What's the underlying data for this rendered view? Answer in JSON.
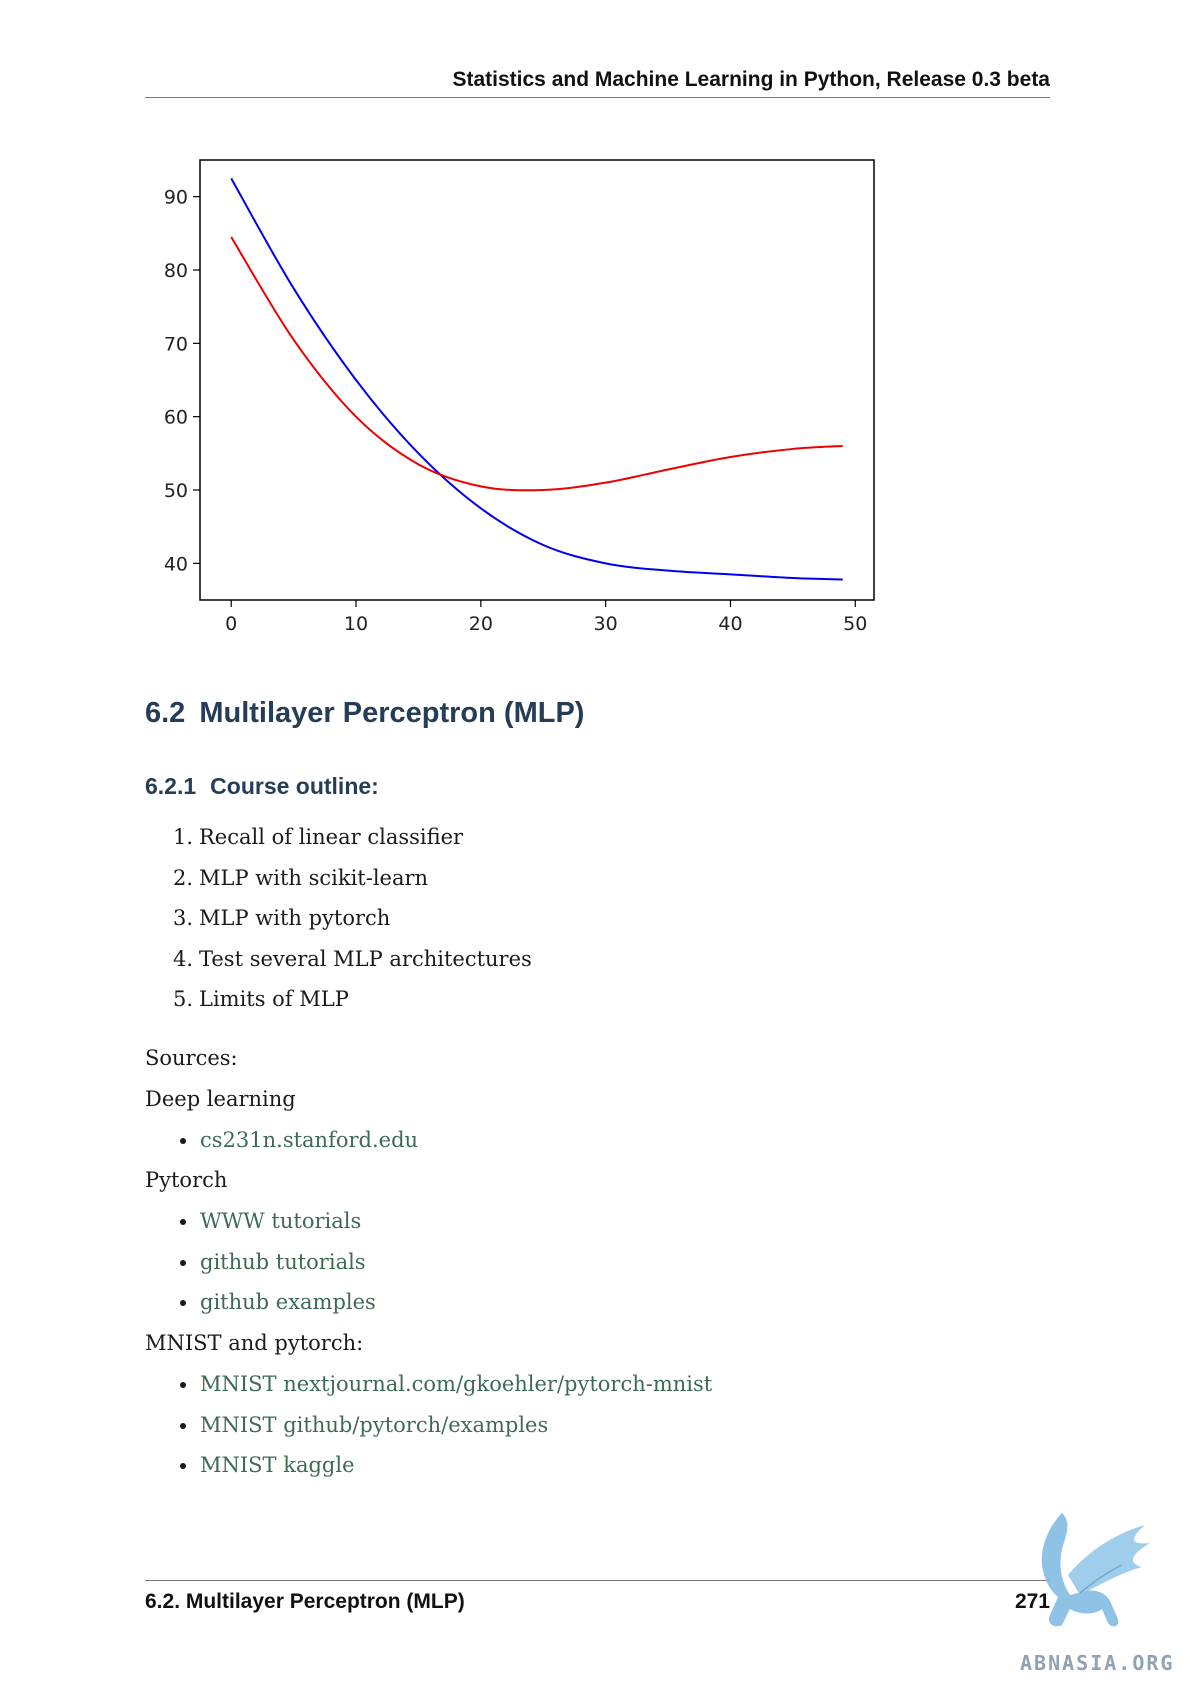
{
  "header": {
    "title": "Statistics and Machine Learning in Python, Release 0.3 beta"
  },
  "chart_data": {
    "type": "line",
    "xlim": [
      -2.5,
      51.5
    ],
    "ylim": [
      35,
      95
    ],
    "xticks": [
      0,
      10,
      20,
      30,
      40,
      50
    ],
    "yticks": [
      40,
      50,
      60,
      70,
      80,
      90
    ],
    "grid": false,
    "series": [
      {
        "color": "#0000ee",
        "x": [
          0,
          5,
          10,
          15,
          20,
          25,
          30,
          35,
          40,
          45,
          49
        ],
        "y": [
          92.5,
          77.5,
          65,
          55,
          47.5,
          42.5,
          40,
          39,
          38.5,
          38,
          37.8
        ]
      },
      {
        "color": "#ee0000",
        "x": [
          0,
          5,
          10,
          15,
          20,
          25,
          30,
          35,
          40,
          45,
          49
        ],
        "y": [
          84.5,
          70.5,
          60,
          53.5,
          50.5,
          50,
          51,
          52.8,
          54.5,
          55.6,
          56
        ]
      }
    ]
  },
  "section": {
    "number": "6.2",
    "title": "Multilayer Perceptron (MLP)"
  },
  "subsection": {
    "number": "6.2.1",
    "title": "Course outline:"
  },
  "outline": [
    {
      "n": "1.",
      "text": "Recall of linear classifier"
    },
    {
      "n": "2.",
      "text": "MLP with scikit-learn"
    },
    {
      "n": "3.",
      "text": "MLP with pytorch"
    },
    {
      "n": "4.",
      "text": "Test several MLP architectures"
    },
    {
      "n": "5.",
      "text": "Limits of MLP"
    }
  ],
  "sources_label": "Sources:",
  "deep_learning": {
    "label": "Deep learning",
    "links": [
      "cs231n.stanford.edu"
    ]
  },
  "pytorch": {
    "label": "Pytorch",
    "links": [
      "WWW tutorials",
      "github tutorials",
      "github examples"
    ]
  },
  "mnist": {
    "label": "MNIST and pytorch:",
    "links": [
      "MNIST nextjournal.com/gkoehler/pytorch-mnist",
      "MNIST github/pytorch/examples",
      "MNIST kaggle"
    ]
  },
  "footer": {
    "left": "6.2.  Multilayer Perceptron (MLP)",
    "page": "271"
  },
  "watermark": {
    "text": "ABNASIA.ORG",
    "icon": "griffin-logo"
  }
}
